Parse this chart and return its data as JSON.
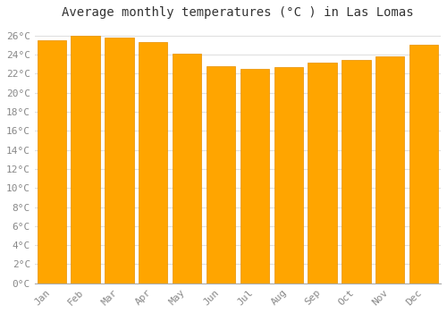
{
  "title": "Average monthly temperatures (°C ) in Las Lomas",
  "months": [
    "Jan",
    "Feb",
    "Mar",
    "Apr",
    "May",
    "Jun",
    "Jul",
    "Aug",
    "Sep",
    "Oct",
    "Nov",
    "Dec"
  ],
  "values": [
    25.5,
    26.0,
    25.8,
    25.3,
    24.1,
    22.8,
    22.5,
    22.7,
    23.2,
    23.4,
    23.8,
    25.0
  ],
  "bar_color": "#FFA500",
  "bar_edge_color": "#E89000",
  "background_color": "#ffffff",
  "grid_color": "#e0e0e0",
  "ylim": [
    0,
    27
  ],
  "yticks": [
    0,
    2,
    4,
    6,
    8,
    10,
    12,
    14,
    16,
    18,
    20,
    22,
    24,
    26
  ],
  "title_fontsize": 10,
  "tick_fontsize": 8,
  "font_family": "monospace",
  "title_color": "#333333",
  "tick_color": "#888888"
}
